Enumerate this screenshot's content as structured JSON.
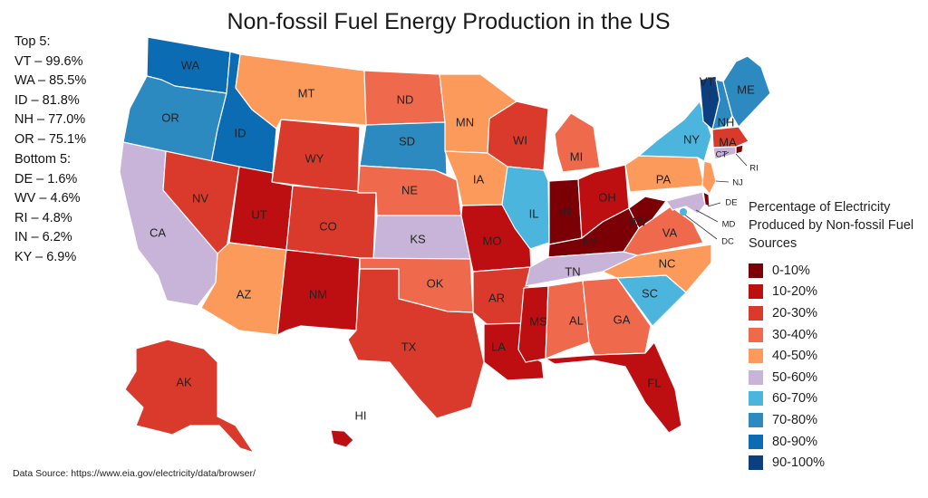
{
  "title": "Non-fossil Fuel Energy Production in the US",
  "top5": {
    "heading": "Top 5:",
    "items": [
      "VT – 99.6%",
      "WA – 85.5%",
      "ID – 81.8%",
      "NH – 77.0%",
      "OR – 75.1%"
    ]
  },
  "bottom5": {
    "heading": "Bottom 5:",
    "items": [
      "DE – 1.6%",
      "WV – 4.6%",
      "RI – 4.8%",
      "IN – 6.2%",
      "KY – 6.9%"
    ]
  },
  "legend": {
    "title": "Percentage of Electricity Produced by Non-fossil Fuel Sources",
    "bins": [
      {
        "label": "0-10%",
        "color": "#7a0006"
      },
      {
        "label": "10-20%",
        "color": "#bd0f12"
      },
      {
        "label": "20-30%",
        "color": "#da3a2b"
      },
      {
        "label": "30-40%",
        "color": "#ef6a4c"
      },
      {
        "label": "40-50%",
        "color": "#fc9a5c"
      },
      {
        "label": "50-60%",
        "color": "#c8b3d9"
      },
      {
        "label": "60-70%",
        "color": "#4bb5dd"
      },
      {
        "label": "70-80%",
        "color": "#2d8ac1"
      },
      {
        "label": "80-90%",
        "color": "#0b6cb3"
      },
      {
        "label": "90-100%",
        "color": "#0b3f80"
      }
    ]
  },
  "source": "Data Source: https://www.eia.gov/electricity/data/browser/",
  "states": [
    {
      "code": "WA",
      "bin": 8
    },
    {
      "code": "OR",
      "bin": 7
    },
    {
      "code": "CA",
      "bin": 5
    },
    {
      "code": "ID",
      "bin": 8
    },
    {
      "code": "NV",
      "bin": 2
    },
    {
      "code": "MT",
      "bin": 4
    },
    {
      "code": "WY",
      "bin": 2
    },
    {
      "code": "UT",
      "bin": 1
    },
    {
      "code": "AZ",
      "bin": 4
    },
    {
      "code": "CO",
      "bin": 2
    },
    {
      "code": "NM",
      "bin": 1
    },
    {
      "code": "ND",
      "bin": 3
    },
    {
      "code": "SD",
      "bin": 7
    },
    {
      "code": "NE",
      "bin": 3
    },
    {
      "code": "KS",
      "bin": 5
    },
    {
      "code": "OK",
      "bin": 3
    },
    {
      "code": "TX",
      "bin": 2
    },
    {
      "code": "MN",
      "bin": 4
    },
    {
      "code": "IA",
      "bin": 4
    },
    {
      "code": "MO",
      "bin": 1
    },
    {
      "code": "AR",
      "bin": 2
    },
    {
      "code": "LA",
      "bin": 1
    },
    {
      "code": "WI",
      "bin": 2
    },
    {
      "code": "IL",
      "bin": 6
    },
    {
      "code": "MI",
      "bin": 3
    },
    {
      "code": "IN",
      "bin": 0
    },
    {
      "code": "OH",
      "bin": 1
    },
    {
      "code": "KY",
      "bin": 0
    },
    {
      "code": "TN",
      "bin": 5
    },
    {
      "code": "MS",
      "bin": 1
    },
    {
      "code": "AL",
      "bin": 3
    },
    {
      "code": "GA",
      "bin": 3
    },
    {
      "code": "FL",
      "bin": 1
    },
    {
      "code": "SC",
      "bin": 6
    },
    {
      "code": "NC",
      "bin": 4
    },
    {
      "code": "VA",
      "bin": 3
    },
    {
      "code": "WV",
      "bin": 0
    },
    {
      "code": "PA",
      "bin": 4
    },
    {
      "code": "NY",
      "bin": 6
    },
    {
      "code": "VT",
      "bin": 9
    },
    {
      "code": "NH",
      "bin": 7
    },
    {
      "code": "ME",
      "bin": 7
    },
    {
      "code": "MA",
      "bin": 2
    },
    {
      "code": "RI",
      "bin": 0
    },
    {
      "code": "CT",
      "bin": 5
    },
    {
      "code": "NJ",
      "bin": 4
    },
    {
      "code": "DE",
      "bin": 0
    },
    {
      "code": "MD",
      "bin": 5
    },
    {
      "code": "DC",
      "bin": 6
    },
    {
      "code": "AK",
      "bin": 2
    },
    {
      "code": "HI",
      "bin": 1
    }
  ]
}
